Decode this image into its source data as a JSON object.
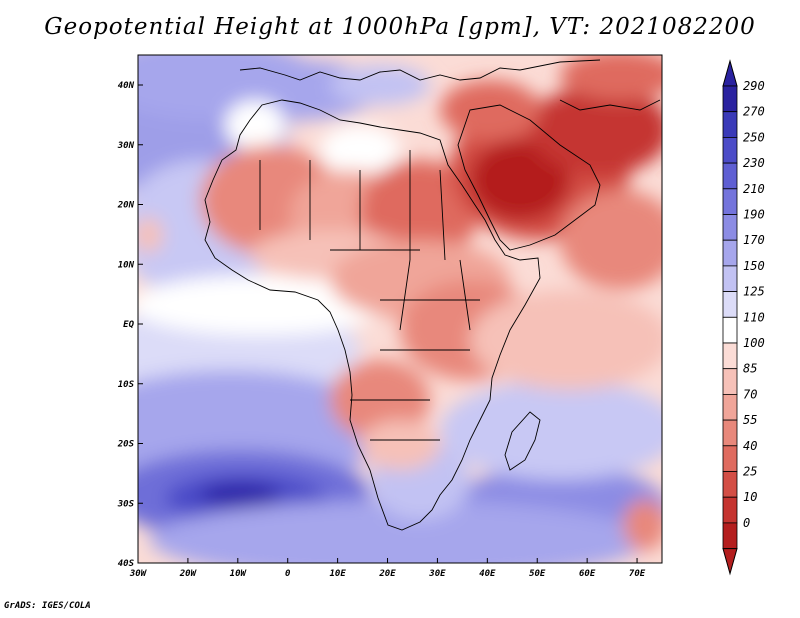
{
  "title": "Geopotential Height at 1000hPa [gpm], VT: 2021082200",
  "credit": "GrADS: IGES/COLA",
  "map": {
    "region": "Africa and Middle East",
    "lon_range": [
      -30,
      75
    ],
    "lat_range": [
      -40,
      45
    ],
    "lon_ticks": [
      "30W",
      "20W",
      "10W",
      "0",
      "10E",
      "20E",
      "30E",
      "40E",
      "50E",
      "60E",
      "70E"
    ],
    "lat_ticks": [
      "40N",
      "30N",
      "20N",
      "10N",
      "EQ",
      "10S",
      "20S",
      "30S",
      "40S"
    ]
  },
  "colorbar": {
    "labels": [
      "290",
      "270",
      "250",
      "230",
      "210",
      "190",
      "170",
      "150",
      "125",
      "110",
      "100",
      "85",
      "70",
      "55",
      "40",
      "25",
      "10",
      "0"
    ],
    "colors": [
      "#2a22a0",
      "#3a3ab8",
      "#4c4cc8",
      "#5f5fd3",
      "#7474dc",
      "#8c8ce4",
      "#a6a6ec",
      "#c2c2f3",
      "#dcdcf8",
      "#ffffff",
      "#fbdcd6",
      "#f6c1b8",
      "#f0a599",
      "#e8887b",
      "#df6b5f",
      "#d34e45",
      "#c53430",
      "#b41e1e"
    ]
  },
  "legend_scale": {
    "stops": [
      0,
      10,
      25,
      40,
      55,
      70,
      85,
      100,
      110,
      125,
      150,
      170,
      190,
      210,
      230,
      250,
      270,
      290
    ],
    "colors": [
      "#b41e1e",
      "#c53430",
      "#d34e45",
      "#df6b5f",
      "#e8887b",
      "#f0a599",
      "#f6c1b8",
      "#fbdcd6",
      "#ffffff",
      "#dcdcf8",
      "#c2c2f3",
      "#a6a6ec",
      "#8c8ce4",
      "#7474dc",
      "#5f5fd3",
      "#4c4cc8",
      "#3a3ab8",
      "#2a22a0"
    ]
  }
}
